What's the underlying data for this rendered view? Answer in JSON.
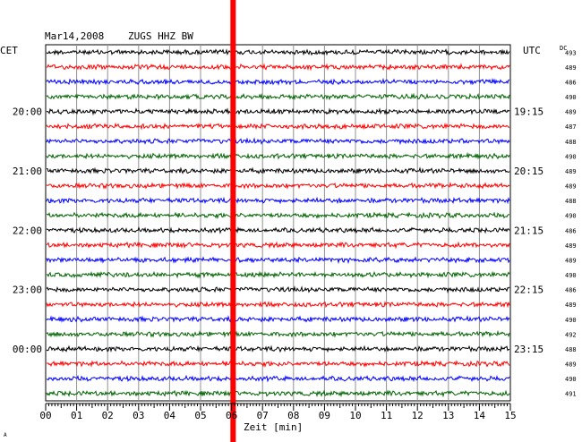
{
  "header": {
    "date": "Mar14,2008",
    "station": "ZUGS HHZ BW",
    "left_tz": "CET",
    "right_tz": "UTC",
    "dc_label": "DC"
  },
  "chart_data": {
    "type": "line",
    "title": "Mar14,2008 ZUGS HHZ BW",
    "xlabel": "Zeit [min]",
    "xlim": [
      0,
      15
    ],
    "x_ticks": [
      "00",
      "01",
      "02",
      "03",
      "04",
      "05",
      "06",
      "07",
      "08",
      "09",
      "10",
      "11",
      "12",
      "13",
      "14",
      "15"
    ],
    "left_time_labels": [
      {
        "row": 4,
        "text": "20:00"
      },
      {
        "row": 8,
        "text": "21:00"
      },
      {
        "row": 12,
        "text": "22:00"
      },
      {
        "row": 16,
        "text": "23:00"
      },
      {
        "row": 20,
        "text": "00:00"
      }
    ],
    "right_time_labels": [
      {
        "row": 4,
        "text": "19:15"
      },
      {
        "row": 8,
        "text": "20:15"
      },
      {
        "row": 12,
        "text": "21:15"
      },
      {
        "row": 16,
        "text": "22:15"
      },
      {
        "row": 20,
        "text": "23:15"
      }
    ],
    "trace_colors": [
      "#000000",
      "#ff0000",
      "#0000ff",
      "#006400"
    ],
    "dc_offsets": [
      "493",
      "489",
      "486",
      "490",
      "489",
      "487",
      "488",
      "490",
      "489",
      "489",
      "488",
      "490",
      "486",
      "489",
      "489",
      "490",
      "486",
      "489",
      "490",
      "492",
      "488",
      "489",
      "490",
      "491"
    ],
    "event_marker": {
      "minute": 6.05,
      "color": "#ff0000"
    },
    "grid": true
  },
  "footer": {
    "mark": "A"
  }
}
